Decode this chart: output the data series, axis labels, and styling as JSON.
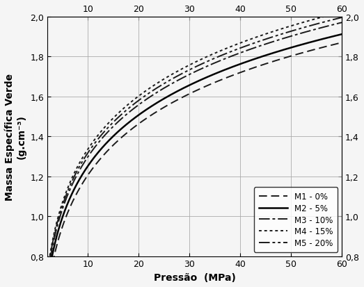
{
  "xlabel": "Pressão  (MPa)",
  "ylabel": "Massa Específica Verde\n(g.cm⁻³)",
  "xmin": 2,
  "xmax": 60,
  "ymin": 0.8,
  "ymax": 2.0,
  "xticks_bottom": [
    10,
    20,
    30,
    40,
    50,
    60
  ],
  "xticks_top": [
    10,
    20,
    30,
    40,
    50,
    60
  ],
  "yticks": [
    0.8,
    1.0,
    1.2,
    1.4,
    1.6,
    1.8,
    2.0
  ],
  "series": [
    {
      "label": "M1 - 0%",
      "linestyle": "dashed",
      "color": "#1a1a1a",
      "linewidth": 1.4,
      "a": 0.355,
      "b": 0.37
    },
    {
      "label": "M2 - 5%",
      "linestyle": "solid",
      "color": "#000000",
      "linewidth": 1.8,
      "a": 0.405,
      "b": 0.368
    },
    {
      "label": "M3 - 10%",
      "linestyle": "dashdot",
      "color": "#1a1a1a",
      "linewidth": 1.4,
      "a": 0.435,
      "b": 0.375
    },
    {
      "label": "M4 - 15%",
      "linestyle": "dotted",
      "color": "#1a1a1a",
      "linewidth": 1.4,
      "a": 0.455,
      "b": 0.383
    },
    {
      "label": "M5 - 20%",
      "linestyle": "dashdotdot",
      "color": "#1a1a1a",
      "linewidth": 1.4,
      "a": 0.448,
      "b": 0.378
    }
  ],
  "background_color": "#f5f5f5",
  "grid_color": "#aaaaaa",
  "legend_fontsize": 8.5,
  "axis_fontsize": 10,
  "tick_fontsize": 9
}
